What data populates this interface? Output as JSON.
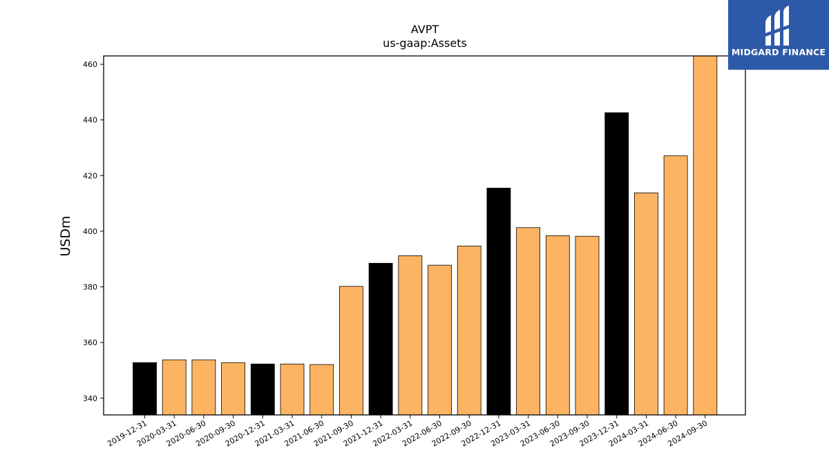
{
  "chart_data": {
    "type": "bar",
    "title": "AVPT",
    "subtitle": "us-gaap:Assets",
    "xlabel": "",
    "ylabel": "USDm",
    "ylim": [
      334,
      463
    ],
    "yticks": [
      340,
      360,
      380,
      400,
      420,
      440,
      460
    ],
    "categories": [
      "2019-12-31",
      "2020-03-31",
      "2020-06-30",
      "2020-09-30",
      "2020-12-31",
      "2021-03-31",
      "2021-06-30",
      "2021-09-30",
      "2021-12-31",
      "2022-03-31",
      "2022-06-30",
      "2022-09-30",
      "2022-12-31",
      "2023-03-31",
      "2023-06-30",
      "2023-09-30",
      "2023-12-31",
      "2024-03-31",
      "2024-06-30",
      "2024-09-30"
    ],
    "values": [
      352.8,
      353.8,
      353.8,
      352.8,
      352.3,
      352.3,
      352.1,
      380.2,
      388.5,
      391.2,
      387.8,
      394.7,
      415.5,
      401.3,
      398.4,
      398.2,
      442.6,
      413.8,
      427.1,
      463.0
    ],
    "bar_colors": [
      "#000000",
      "#fdb462",
      "#fdb462",
      "#fdb462",
      "#000000",
      "#fdb462",
      "#fdb462",
      "#fdb462",
      "#000000",
      "#fdb462",
      "#fdb462",
      "#fdb462",
      "#000000",
      "#fdb462",
      "#fdb462",
      "#fdb462",
      "#000000",
      "#fdb462",
      "#fdb462",
      "#fdb462"
    ],
    "grid": false,
    "legend": "none"
  },
  "logo": {
    "text": "MIDGARD FINANCE",
    "icon": "midgard-logo-icon",
    "background": "#2d5aa8"
  }
}
